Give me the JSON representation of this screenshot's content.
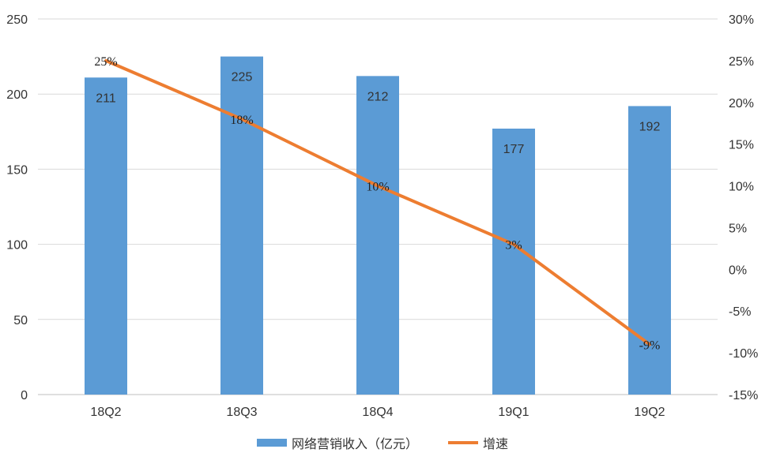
{
  "chart_data": {
    "type": "bar",
    "categories": [
      "18Q2",
      "18Q3",
      "18Q4",
      "19Q1",
      "19Q2"
    ],
    "series": [
      {
        "name": "网络营销收入（亿元）",
        "type": "bar",
        "axis": "left",
        "color": "#5b9bd5",
        "values": [
          211,
          225,
          212,
          177,
          192
        ],
        "labels": [
          "211",
          "225",
          "212",
          "177",
          "192"
        ]
      },
      {
        "name": "增速",
        "type": "line",
        "axis": "right",
        "color": "#ed7d31",
        "values": [
          25,
          18,
          10,
          3,
          -9
        ],
        "labels": [
          "25%",
          "18%",
          "10%",
          "3%",
          "-9%"
        ]
      }
    ],
    "left_axis": {
      "ylim": [
        0,
        250
      ],
      "ticks": [
        0,
        50,
        100,
        150,
        200,
        250
      ],
      "tick_labels": [
        "0",
        "50",
        "100",
        "150",
        "200",
        "250"
      ]
    },
    "right_axis": {
      "ylim": [
        -15,
        30
      ],
      "ticks": [
        -15,
        -10,
        -5,
        0,
        5,
        10,
        15,
        20,
        25,
        30
      ],
      "tick_labels": [
        "-15%",
        "-10%",
        "-5%",
        "0%",
        "5%",
        "10%",
        "15%",
        "20%",
        "25%",
        "30%"
      ]
    },
    "grid": true,
    "legend_position": "bottom"
  },
  "colors": {
    "grid": "#d9d9d9",
    "axis": "#bfbfbf"
  }
}
